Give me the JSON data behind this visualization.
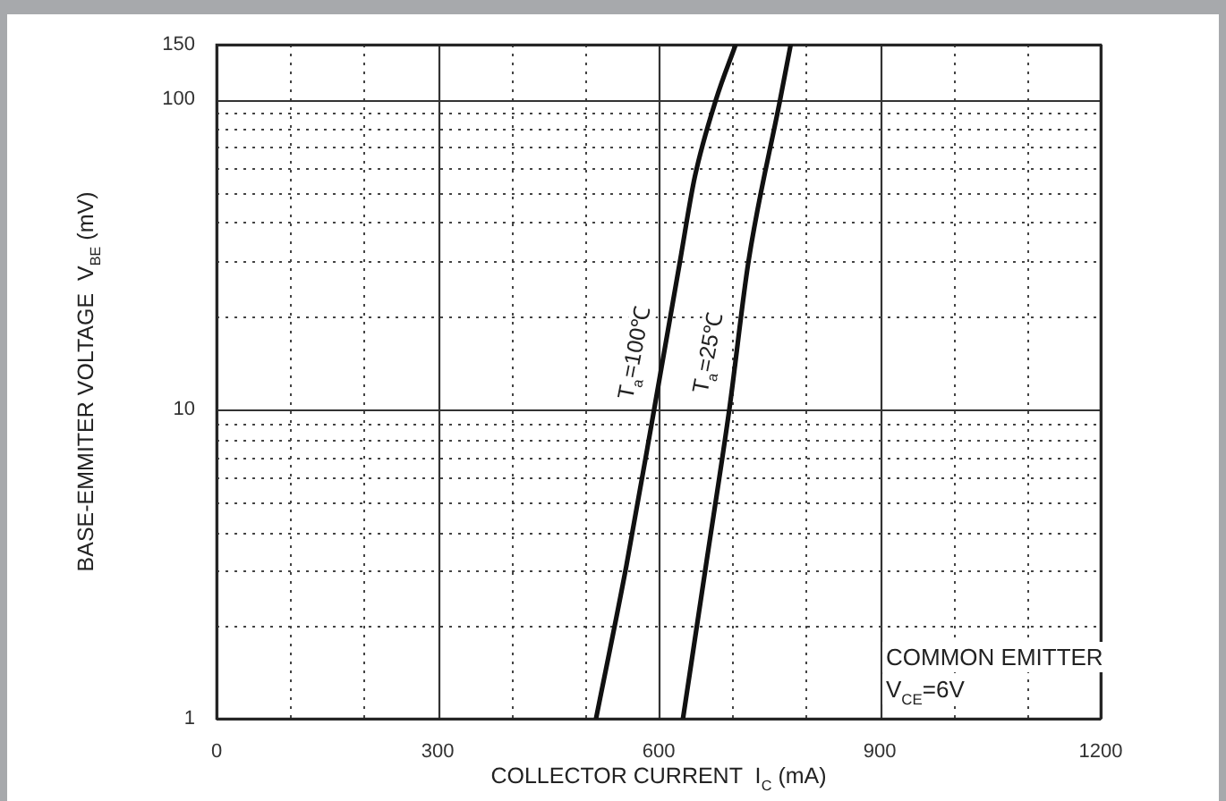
{
  "chart_data": {
    "type": "line",
    "xlabel": "COLLECTOR CURRENT  I$_{C}$ (mA)",
    "ylabel": "BASE-EMMITER VOLTAGE  V$_{BE}$ (mV)",
    "log": "y",
    "grid": true,
    "legend": false,
    "xlim": [
      0,
      1200
    ],
    "xticks": [
      0,
      {
        "value": 100,
        "label": null
      },
      {
        "value": 200,
        "label": null
      },
      300,
      {
        "value": 400,
        "label": null
      },
      {
        "value": 500,
        "label": null
      },
      600,
      {
        "value": 700,
        "label": null
      },
      {
        "value": 800,
        "label": null
      },
      900,
      {
        "value": 1000,
        "label": null
      },
      {
        "value": 1100,
        "label": null
      },
      1200
    ],
    "ylim": [
      1,
      150
    ],
    "yticks": [
      1,
      {
        "value": 2,
        "label": null
      },
      {
        "value": 3,
        "label": null
      },
      {
        "value": 4,
        "label": null
      },
      {
        "value": 5,
        "label": null
      },
      {
        "value": 6,
        "label": null
      },
      {
        "value": 7,
        "label": null
      },
      {
        "value": 8,
        "label": null
      },
      {
        "value": 9,
        "label": null
      },
      10,
      {
        "value": 20,
        "label": null
      },
      {
        "value": 30,
        "label": null
      },
      {
        "value": 40,
        "label": null
      },
      {
        "value": 50,
        "label": null
      },
      {
        "value": 60,
        "label": null
      },
      {
        "value": 70,
        "label": null
      },
      {
        "value": 80,
        "label": null
      },
      {
        "value": 90,
        "label": null
      },
      100,
      150
    ],
    "series": [
      {
        "color": "#111111",
        "x": [
          515,
          556,
          594,
          629,
          649,
          678,
          704
        ],
        "values": [
          1,
          3.1,
          10,
          30,
          56,
          100,
          149
        ]
      },
      {
        "color": "#111111",
        "x": [
          633,
          664,
          696,
          722,
          765,
          779
        ],
        "values": [
          1,
          3.1,
          10,
          30,
          100,
          149
        ]
      }
    ],
    "annotations": [
      {
        "text": "T$_{a}$=100℃",
        "x": 608,
        "y": 15
      },
      {
        "text": "T$_{a}$=25℃",
        "x": 708,
        "y": 15
      },
      "COMMON EMITTER",
      "V$_{CE}$=6V"
    ]
  }
}
